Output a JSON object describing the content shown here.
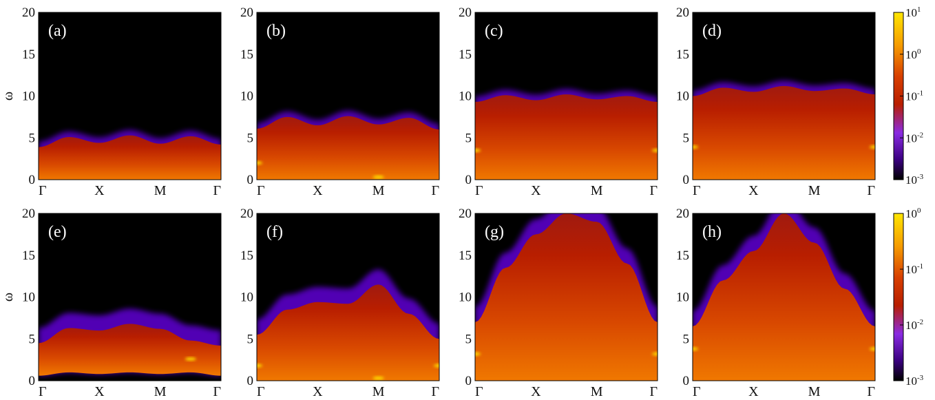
{
  "colors": {
    "background": "#000000",
    "low": "#1a0033",
    "violet": "#5a00c8",
    "purple": "#8a2be2",
    "red": "#b81e00",
    "orange": "#e05a00",
    "amber": "#f59a00",
    "yellow": "#ffe600"
  },
  "chart_data": [
    {
      "type": "heatmap",
      "panel_label": "(a)",
      "row": 0,
      "ylabel": "ω",
      "ylim": [
        0,
        20
      ],
      "yticks": [
        "0",
        "5",
        "10",
        "15",
        "20"
      ],
      "xticks": [
        "Γ",
        "X",
        "M",
        "Γ"
      ],
      "bands": [
        {
          "k": [
            0,
            0.5,
            1,
            1.5,
            2,
            2.5,
            3
          ],
          "lo": [
            0,
            0,
            0,
            0,
            0,
            0,
            0
          ],
          "hi": [
            3.9,
            5.1,
            4.4,
            5.3,
            4.3,
            5.2,
            4.2
          ]
        }
      ],
      "hot_points": []
    },
    {
      "type": "heatmap",
      "panel_label": "(b)",
      "row": 0,
      "ylabel": "",
      "ylim": [
        0,
        20
      ],
      "yticks": [
        "0",
        "5",
        "10",
        "15",
        "20"
      ],
      "xticks": [
        "Γ",
        "X",
        "M",
        "Γ"
      ],
      "bands": [
        {
          "k": [
            0,
            0.5,
            1,
            1.5,
            2,
            2.5,
            3
          ],
          "lo": [
            0,
            0,
            0,
            0,
            0,
            0,
            0
          ],
          "hi": [
            6.1,
            7.5,
            6.5,
            7.6,
            6.6,
            7.4,
            6.0
          ]
        }
      ],
      "hot_points": [
        {
          "k": 0,
          "w": 2.0
        },
        {
          "k": 2,
          "w": 0.3
        }
      ]
    },
    {
      "type": "heatmap",
      "panel_label": "(c)",
      "row": 0,
      "ylabel": "",
      "ylim": [
        0,
        20
      ],
      "yticks": [
        "0",
        "5",
        "10",
        "15",
        "20"
      ],
      "xticks": [
        "Γ",
        "X",
        "M",
        "Γ"
      ],
      "bands": [
        {
          "k": [
            0,
            0.5,
            1,
            1.5,
            2,
            2.5,
            3
          ],
          "lo": [
            0,
            0,
            0,
            0,
            0,
            0,
            0
          ],
          "hi": [
            9.3,
            10.1,
            9.5,
            10.2,
            9.6,
            10.0,
            9.3
          ]
        }
      ],
      "hot_points": [
        {
          "k": 0,
          "w": 3.5
        },
        {
          "k": 3,
          "w": 3.5
        }
      ]
    },
    {
      "type": "heatmap",
      "panel_label": "(d)",
      "row": 0,
      "ylabel": "",
      "ylim": [
        0,
        20
      ],
      "yticks": [
        "0",
        "5",
        "10",
        "15",
        "20"
      ],
      "xticks": [
        "Γ",
        "X",
        "M",
        "Γ"
      ],
      "bands": [
        {
          "k": [
            0,
            0.5,
            1,
            1.5,
            2,
            2.5,
            3
          ],
          "lo": [
            0,
            0,
            0,
            0,
            0,
            0,
            0
          ],
          "hi": [
            10.0,
            11.0,
            10.5,
            11.2,
            10.6,
            10.9,
            10.2
          ]
        }
      ],
      "hot_points": [
        {
          "k": 0,
          "w": 3.9
        },
        {
          "k": 3,
          "w": 3.9
        }
      ]
    },
    {
      "type": "heatmap",
      "panel_label": "(e)",
      "row": 1,
      "ylabel": "ω",
      "ylim": [
        0,
        20
      ],
      "yticks": [
        "0",
        "5",
        "10",
        "15",
        "20"
      ],
      "xticks": [
        "Γ",
        "X",
        "M",
        "Γ"
      ],
      "bands": [
        {
          "k": [
            0,
            0.5,
            1,
            1.5,
            2,
            2.5,
            3
          ],
          "lo": [
            0.6,
            1.0,
            0.8,
            1.0,
            0.8,
            1.0,
            0.6
          ],
          "hi": [
            4.5,
            6.3,
            6.0,
            6.8,
            6.2,
            4.8,
            4.2
          ]
        }
      ],
      "hot_points": [
        {
          "k": 2.5,
          "w": 2.6
        }
      ]
    },
    {
      "type": "heatmap",
      "panel_label": "(f)",
      "row": 1,
      "ylabel": "",
      "ylim": [
        0,
        20
      ],
      "yticks": [
        "0",
        "5",
        "10",
        "15",
        "20"
      ],
      "xticks": [
        "Γ",
        "X",
        "M",
        "Γ"
      ],
      "bands": [
        {
          "k": [
            0,
            0.5,
            1,
            1.5,
            2,
            2.5,
            3
          ],
          "lo": [
            0,
            0,
            0,
            0,
            0,
            0,
            0
          ],
          "hi": [
            5.5,
            8.5,
            9.4,
            9.2,
            11.5,
            8.0,
            5.0
          ]
        }
      ],
      "hot_points": [
        {
          "k": 0,
          "w": 1.8
        },
        {
          "k": 3,
          "w": 1.8
        },
        {
          "k": 2,
          "w": 0.3
        }
      ]
    },
    {
      "type": "heatmap",
      "panel_label": "(g)",
      "row": 1,
      "ylabel": "",
      "ylim": [
        0,
        20
      ],
      "yticks": [
        "0",
        "5",
        "10",
        "15",
        "20"
      ],
      "xticks": [
        "Γ",
        "X",
        "M",
        "Γ"
      ],
      "bands": [
        {
          "k": [
            0,
            0.5,
            1,
            1.5,
            2,
            2.5,
            3
          ],
          "lo": [
            0,
            0,
            0,
            0,
            0,
            0,
            0
          ],
          "hi": [
            7.0,
            13.5,
            17.5,
            20.0,
            19.0,
            14.0,
            7.0
          ]
        }
      ],
      "hot_points": [
        {
          "k": 0,
          "w": 3.2
        },
        {
          "k": 3,
          "w": 3.2
        }
      ]
    },
    {
      "type": "heatmap",
      "panel_label": "(h)",
      "row": 1,
      "ylabel": "",
      "ylim": [
        0,
        20
      ],
      "yticks": [
        "0",
        "5",
        "10",
        "15",
        "20"
      ],
      "xticks": [
        "Γ",
        "X",
        "M",
        "Γ"
      ],
      "bands": [
        {
          "k": [
            0,
            0.5,
            1,
            1.5,
            2,
            2.5,
            3
          ],
          "lo": [
            0,
            0,
            0,
            0,
            0,
            0,
            0
          ],
          "hi": [
            6.5,
            12.0,
            15.5,
            20.0,
            16.5,
            11.0,
            6.5
          ]
        }
      ],
      "hot_points": [
        {
          "k": 0,
          "w": 3.8
        },
        {
          "k": 3,
          "w": 3.8
        }
      ]
    }
  ],
  "colorbars": [
    {
      "row": 0,
      "ticks": [
        "10^1",
        "10^0",
        "10^-1",
        "10^-2",
        "10^-3"
      ]
    },
    {
      "row": 1,
      "ticks": [
        "10^0",
        "10^-1",
        "10^-2",
        "10^-3"
      ]
    }
  ]
}
